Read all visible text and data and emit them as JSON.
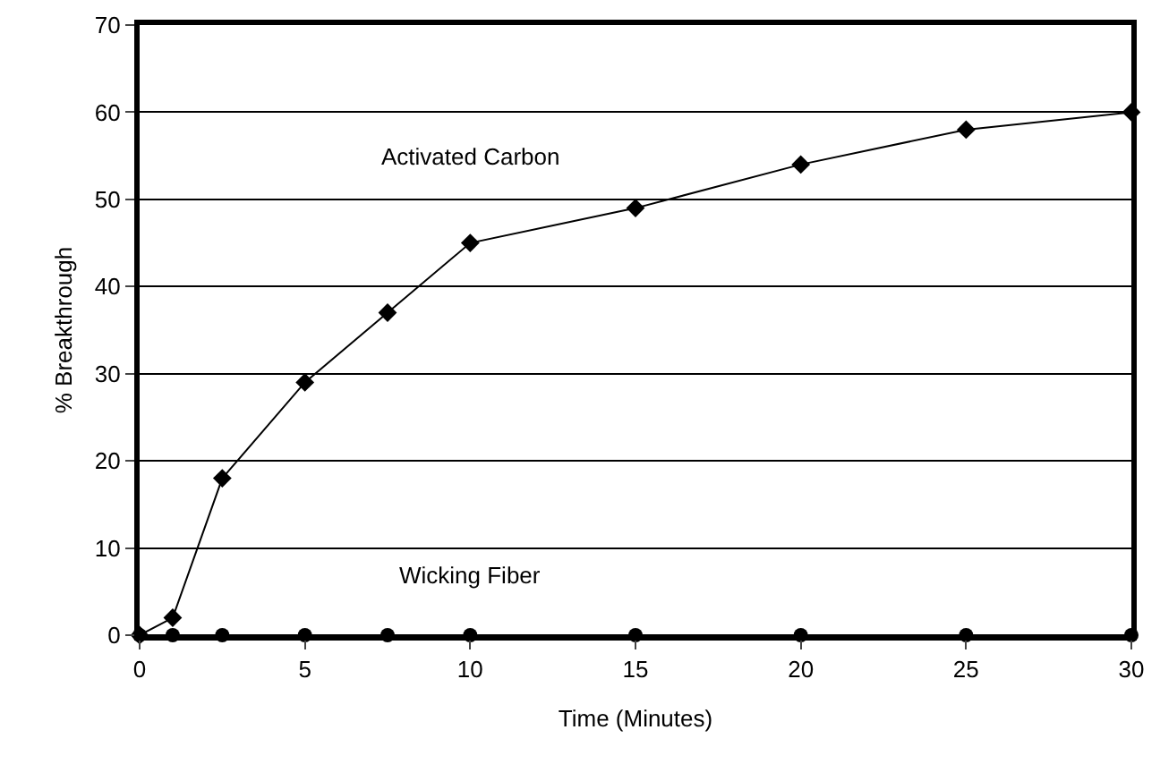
{
  "chart_data": {
    "type": "line",
    "xlabel": "Time (Minutes)",
    "ylabel": "% Breakthrough",
    "x": [
      0,
      1,
      2.5,
      5,
      7.5,
      10,
      15,
      20,
      25,
      30
    ],
    "series": [
      {
        "name": "Activated Carbon",
        "color": "#000000",
        "marker": "diamond",
        "values": [
          0,
          2,
          18,
          29,
          37,
          45,
          49,
          54,
          58,
          60
        ]
      },
      {
        "name": "Wicking Fiber",
        "color": "#000000",
        "marker": "circle",
        "values": [
          0,
          0,
          0,
          0,
          0,
          0,
          0,
          0,
          0,
          0
        ]
      }
    ],
    "xlim": [
      0,
      30
    ],
    "ylim": [
      0,
      70
    ],
    "xticks": [
      0,
      5,
      10,
      15,
      20,
      25,
      30
    ],
    "yticks": [
      0,
      10,
      20,
      30,
      40,
      50,
      60,
      70
    ],
    "grid": "y",
    "legend": false,
    "line_style": "solid"
  }
}
